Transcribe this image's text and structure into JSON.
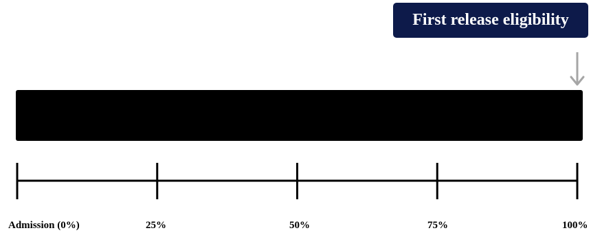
{
  "callout": {
    "text": "First release eligibility",
    "background": "#0d1a4a",
    "text_color": "#ffffff"
  },
  "arrow": {
    "color": "#a6a6a6",
    "icon": "down-arrow-icon"
  },
  "bar": {
    "color": "#000000",
    "progress": 1.0
  },
  "timeline": {
    "line_color": "#000000",
    "labels": [
      "Admission (0%)",
      "25%",
      "50%",
      "75%",
      "100%"
    ],
    "fractions": [
      0,
      0.25,
      0.5,
      0.75,
      1.0
    ]
  }
}
